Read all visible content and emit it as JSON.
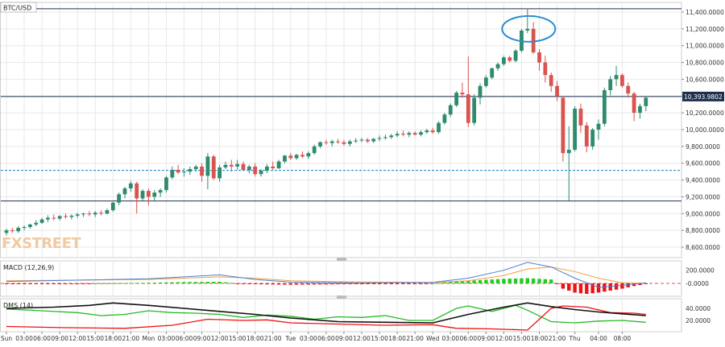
{
  "instrument": "BTC/USD",
  "watermark": "FXSTREET",
  "last_price_label": "10,393.9802",
  "colors": {
    "up": "#2e8b6e",
    "down": "#d9534f",
    "grid": "#e8e8e8",
    "axis_text": "#333333",
    "hline": "#1f2f4f",
    "dotted": "#2a8fd0",
    "highlight_ellipse": "#2a8fd0",
    "macd_line": "#4a7fd4",
    "signal_line": "#f0a040",
    "hist_pos": "#22cc22",
    "hist_neg": "#ee1111",
    "dms_plus": "#22bb22",
    "dms_minus": "#ee1111",
    "adx": "#111111"
  },
  "chart_data": [
    {
      "type": "candlestick",
      "title": "BTC/USD",
      "ylim": [
        8500,
        11500
      ],
      "y_ticks": [
        "11,400.0000",
        "11,200.0000",
        "11,000.0000",
        "10,800.0000",
        "10,600.0000",
        "10,400.0000",
        "10,200.0000",
        "10,000.0000",
        "9,800.0000",
        "9,600.0000",
        "9,400.0000",
        "9,200.0000",
        "9,000.0000",
        "8,800.0000",
        "8,600.0000"
      ],
      "y_tick_values": [
        11400,
        11200,
        11000,
        10800,
        10600,
        10400,
        10200,
        10000,
        9800,
        9600,
        9400,
        9200,
        9000,
        8800,
        8600
      ],
      "x_tick_labels": [
        "Sun",
        "03:00",
        "06:00",
        "09:00",
        "12:00",
        "15:00",
        "18:00",
        "21:00",
        "Mon",
        "03:00",
        "06:00",
        "09:00",
        "12:00",
        "15:00",
        "18:00",
        "21:00",
        "Tue",
        "03:00",
        "06:00",
        "09:00",
        "12:00",
        "15:00",
        "18:00",
        "21:00",
        "Wed",
        "03:00",
        "06:00",
        "09:00",
        "12:00",
        "15:00",
        "18:00",
        "21:00",
        "Thu",
        "04:00",
        "08:00"
      ],
      "x_tick_hours": [
        0,
        3,
        6,
        9,
        12,
        15,
        18,
        21,
        24,
        27,
        30,
        33,
        36,
        39,
        42,
        45,
        48,
        51,
        54,
        57,
        60,
        63,
        66,
        69,
        72,
        75,
        78,
        81,
        84,
        87,
        90,
        93,
        96,
        100,
        104
      ],
      "hlines": [
        11440,
        10394,
        9150
      ],
      "dotted_hline": 9515,
      "candles": [
        [
          0,
          8770,
          8820,
          8740,
          8800
        ],
        [
          1,
          8800,
          8830,
          8770,
          8790
        ],
        [
          2,
          8790,
          8850,
          8770,
          8830
        ],
        [
          3,
          8830,
          8860,
          8800,
          8840
        ],
        [
          4,
          8840,
          8880,
          8820,
          8870
        ],
        [
          5,
          8870,
          8920,
          8850,
          8890
        ],
        [
          6,
          8890,
          8950,
          8880,
          8930
        ],
        [
          7,
          8930,
          8980,
          8900,
          8950
        ],
        [
          8,
          8950,
          8990,
          8920,
          8940
        ],
        [
          9,
          8940,
          8980,
          8920,
          8970
        ],
        [
          10,
          8970,
          9000,
          8940,
          8960
        ],
        [
          11,
          8960,
          8990,
          8930,
          8975
        ],
        [
          12,
          8975,
          9010,
          8950,
          8990
        ],
        [
          13,
          8990,
          9010,
          8960,
          9000
        ],
        [
          14,
          9000,
          9030,
          8970,
          8990
        ],
        [
          15,
          8990,
          9030,
          8960,
          9010
        ],
        [
          16,
          9010,
          9040,
          8980,
          9000
        ],
        [
          17,
          9000,
          9060,
          8990,
          9040
        ],
        [
          18,
          9040,
          9140,
          9020,
          9130
        ],
        [
          19,
          9130,
          9250,
          9100,
          9230
        ],
        [
          20,
          9230,
          9320,
          9180,
          9300
        ],
        [
          21,
          9300,
          9390,
          9260,
          9360
        ],
        [
          22,
          9360,
          9380,
          9000,
          9180
        ],
        [
          23,
          9180,
          9290,
          9150,
          9270
        ],
        [
          24,
          9270,
          9300,
          9100,
          9200
        ],
        [
          25,
          9200,
          9280,
          9150,
          9250
        ],
        [
          26,
          9250,
          9300,
          9200,
          9280
        ],
        [
          27,
          9280,
          9450,
          9250,
          9430
        ],
        [
          28,
          9430,
          9560,
          9410,
          9520
        ],
        [
          29,
          9520,
          9580,
          9470,
          9490
        ],
        [
          30,
          9490,
          9540,
          9440,
          9500
        ],
        [
          31,
          9500,
          9560,
          9460,
          9530
        ],
        [
          32,
          9530,
          9580,
          9500,
          9560
        ],
        [
          33,
          9560,
          9600,
          9380,
          9450
        ],
        [
          34,
          9450,
          9720,
          9290,
          9680
        ],
        [
          35,
          9680,
          9700,
          9400,
          9420
        ],
        [
          36,
          9420,
          9580,
          9380,
          9550
        ],
        [
          37,
          9550,
          9620,
          9530,
          9580
        ],
        [
          38,
          9580,
          9640,
          9500,
          9560
        ],
        [
          39,
          9560,
          9640,
          9520,
          9590
        ],
        [
          40,
          9590,
          9620,
          9510,
          9520
        ],
        [
          41,
          9520,
          9580,
          9480,
          9560
        ],
        [
          42,
          9560,
          9600,
          9440,
          9470
        ],
        [
          43,
          9470,
          9530,
          9440,
          9510
        ],
        [
          44,
          9510,
          9590,
          9480,
          9560
        ],
        [
          45,
          9560,
          9620,
          9520,
          9540
        ],
        [
          46,
          9540,
          9640,
          9530,
          9620
        ],
        [
          47,
          9620,
          9700,
          9600,
          9690
        ],
        [
          48,
          9690,
          9720,
          9640,
          9660
        ],
        [
          49,
          9660,
          9710,
          9640,
          9700
        ],
        [
          50,
          9700,
          9740,
          9660,
          9680
        ],
        [
          51,
          9680,
          9740,
          9650,
          9720
        ],
        [
          52,
          9720,
          9820,
          9700,
          9800
        ],
        [
          53,
          9800,
          9860,
          9780,
          9850
        ],
        [
          54,
          9850,
          9880,
          9820,
          9840
        ],
        [
          55,
          9840,
          9880,
          9800,
          9860
        ],
        [
          56,
          9860,
          9890,
          9830,
          9850
        ],
        [
          57,
          9850,
          9880,
          9810,
          9830
        ],
        [
          58,
          9830,
          9880,
          9800,
          9860
        ],
        [
          59,
          9860,
          9900,
          9840,
          9870
        ],
        [
          60,
          9870,
          9900,
          9850,
          9880
        ],
        [
          61,
          9880,
          9900,
          9840,
          9860
        ],
        [
          62,
          9860,
          9900,
          9840,
          9890
        ],
        [
          63,
          9890,
          9930,
          9860,
          9900
        ],
        [
          64,
          9900,
          9940,
          9880,
          9910
        ],
        [
          65,
          9910,
          9950,
          9890,
          9930
        ],
        [
          66,
          9930,
          9980,
          9910,
          9950
        ],
        [
          67,
          9950,
          9990,
          9920,
          9940
        ],
        [
          68,
          9940,
          9980,
          9910,
          9960
        ],
        [
          69,
          9960,
          9980,
          9930,
          9940
        ],
        [
          70,
          9940,
          9990,
          9920,
          9970
        ],
        [
          71,
          9970,
          10010,
          9950,
          9990
        ],
        [
          72,
          9990,
          10020,
          9950,
          9970
        ],
        [
          73,
          9970,
          10100,
          9950,
          10080
        ],
        [
          74,
          10080,
          10200,
          10060,
          10180
        ],
        [
          75,
          10180,
          10310,
          10150,
          10290
        ],
        [
          76,
          10290,
          10460,
          10270,
          10440
        ],
        [
          77,
          10440,
          10560,
          10380,
          10420
        ],
        [
          78,
          10420,
          10870,
          10030,
          10080
        ],
        [
          79,
          10080,
          10420,
          10050,
          10380
        ],
        [
          80,
          10380,
          10550,
          10300,
          10520
        ],
        [
          81,
          10520,
          10650,
          10500,
          10620
        ],
        [
          82,
          10620,
          10740,
          10600,
          10730
        ],
        [
          83,
          10730,
          10800,
          10700,
          10780
        ],
        [
          84,
          10780,
          10880,
          10760,
          10860
        ],
        [
          85,
          10860,
          10880,
          10800,
          10820
        ],
        [
          86,
          10820,
          10960,
          10800,
          10940
        ],
        [
          87,
          10940,
          11200,
          10920,
          11180
        ],
        [
          88,
          11180,
          11440,
          11150,
          11200
        ],
        [
          89,
          11200,
          11280,
          10900,
          10920
        ],
        [
          90,
          10920,
          10960,
          10700,
          10800
        ],
        [
          91,
          10800,
          10880,
          10560,
          10650
        ],
        [
          92,
          10650,
          10680,
          10450,
          10520
        ],
        [
          93,
          10520,
          10580,
          10340,
          10400
        ],
        [
          94,
          10380,
          10400,
          9620,
          9720
        ],
        [
          95,
          9720,
          10040,
          9150,
          9760
        ],
        [
          96,
          9760,
          10280,
          9740,
          10250
        ],
        [
          97,
          10250,
          10310,
          9960,
          10050
        ],
        [
          98,
          10050,
          10090,
          9730,
          9800
        ],
        [
          99,
          9800,
          10020,
          9760,
          10000
        ],
        [
          100,
          10000,
          10120,
          9880,
          10070
        ],
        [
          101,
          10070,
          10500,
          10040,
          10470
        ],
        [
          102,
          10470,
          10640,
          10410,
          10600
        ],
        [
          103,
          10600,
          10760,
          10520,
          10650
        ],
        [
          104,
          10650,
          10670,
          10500,
          10520
        ],
        [
          105,
          10520,
          10560,
          10380,
          10430
        ],
        [
          106,
          10430,
          10450,
          10100,
          10200
        ],
        [
          107,
          10200,
          10310,
          10130,
          10280
        ],
        [
          108,
          10280,
          10400,
          10220,
          10380
        ]
      ]
    },
    {
      "type": "line",
      "title": "MACD (12,26,9)",
      "y_ticks": [
        "200.0000",
        "-0.0000"
      ],
      "y_tick_values": [
        200,
        0
      ],
      "ylim": [
        -200,
        350
      ],
      "macd_points": [
        [
          0,
          30
        ],
        [
          24,
          70
        ],
        [
          30,
          100
        ],
        [
          36,
          130
        ],
        [
          42,
          60
        ],
        [
          48,
          20
        ],
        [
          60,
          10
        ],
        [
          72,
          15
        ],
        [
          78,
          80
        ],
        [
          84,
          200
        ],
        [
          88,
          320
        ],
        [
          92,
          250
        ],
        [
          96,
          80
        ],
        [
          100,
          -60
        ],
        [
          104,
          -30
        ],
        [
          108,
          10
        ]
      ],
      "signal_points": [
        [
          0,
          40
        ],
        [
          24,
          60
        ],
        [
          30,
          80
        ],
        [
          36,
          100
        ],
        [
          42,
          80
        ],
        [
          48,
          40
        ],
        [
          60,
          20
        ],
        [
          72,
          15
        ],
        [
          78,
          40
        ],
        [
          84,
          120
        ],
        [
          88,
          220
        ],
        [
          92,
          250
        ],
        [
          96,
          180
        ],
        [
          100,
          80
        ],
        [
          104,
          10
        ],
        [
          108,
          0
        ]
      ],
      "hist_points": [
        [
          0,
          -5
        ],
        [
          10,
          -5
        ],
        [
          20,
          5
        ],
        [
          24,
          10
        ],
        [
          30,
          20
        ],
        [
          36,
          25
        ],
        [
          40,
          -10
        ],
        [
          48,
          -20
        ],
        [
          54,
          -15
        ],
        [
          60,
          -10
        ],
        [
          66,
          -5
        ],
        [
          72,
          0
        ],
        [
          76,
          30
        ],
        [
          80,
          50
        ],
        [
          84,
          70
        ],
        [
          88,
          80
        ],
        [
          92,
          60
        ],
        [
          94,
          -80
        ],
        [
          96,
          -140
        ],
        [
          98,
          -160
        ],
        [
          100,
          -140
        ],
        [
          102,
          -110
        ],
        [
          104,
          -80
        ],
        [
          106,
          -40
        ],
        [
          108,
          -10
        ]
      ]
    },
    {
      "type": "line",
      "title": "DMS (14)",
      "y_ticks": [
        "40.0000",
        "20.0000"
      ],
      "y_tick_values": [
        40,
        20
      ],
      "ylim": [
        0,
        55
      ],
      "plus_di": [
        [
          0,
          39
        ],
        [
          6,
          36
        ],
        [
          12,
          33
        ],
        [
          16,
          28
        ],
        [
          20,
          30
        ],
        [
          24,
          36
        ],
        [
          28,
          33
        ],
        [
          32,
          32
        ],
        [
          36,
          30
        ],
        [
          40,
          25
        ],
        [
          44,
          29
        ],
        [
          48,
          27
        ],
        [
          52,
          22
        ],
        [
          56,
          26
        ],
        [
          60,
          25
        ],
        [
          64,
          28
        ],
        [
          68,
          20
        ],
        [
          72,
          20
        ],
        [
          76,
          40
        ],
        [
          78,
          44
        ],
        [
          82,
          35
        ],
        [
          86,
          45
        ],
        [
          88,
          37
        ],
        [
          92,
          18
        ],
        [
          96,
          16
        ],
        [
          100,
          19
        ],
        [
          104,
          20
        ],
        [
          108,
          17
        ]
      ],
      "minus_di": [
        [
          0,
          10
        ],
        [
          10,
          8
        ],
        [
          20,
          7
        ],
        [
          28,
          12
        ],
        [
          34,
          22
        ],
        [
          40,
          20
        ],
        [
          44,
          21
        ],
        [
          48,
          16
        ],
        [
          56,
          14
        ],
        [
          64,
          12
        ],
        [
          72,
          13
        ],
        [
          76,
          7
        ],
        [
          82,
          6
        ],
        [
          88,
          4
        ],
        [
          92,
          40
        ],
        [
          94,
          44
        ],
        [
          98,
          42
        ],
        [
          102,
          33
        ],
        [
          106,
          32
        ],
        [
          108,
          30
        ]
      ],
      "adx": [
        [
          0,
          40
        ],
        [
          8,
          42
        ],
        [
          14,
          45
        ],
        [
          18,
          49
        ],
        [
          24,
          45
        ],
        [
          30,
          40
        ],
        [
          36,
          35
        ],
        [
          42,
          30
        ],
        [
          46,
          26
        ],
        [
          48,
          24
        ],
        [
          56,
          18
        ],
        [
          64,
          17
        ],
        [
          72,
          16
        ],
        [
          78,
          30
        ],
        [
          84,
          42
        ],
        [
          88,
          49
        ],
        [
          92,
          43
        ],
        [
          96,
          38
        ],
        [
          100,
          34
        ],
        [
          104,
          31
        ],
        [
          108,
          28
        ]
      ]
    }
  ]
}
